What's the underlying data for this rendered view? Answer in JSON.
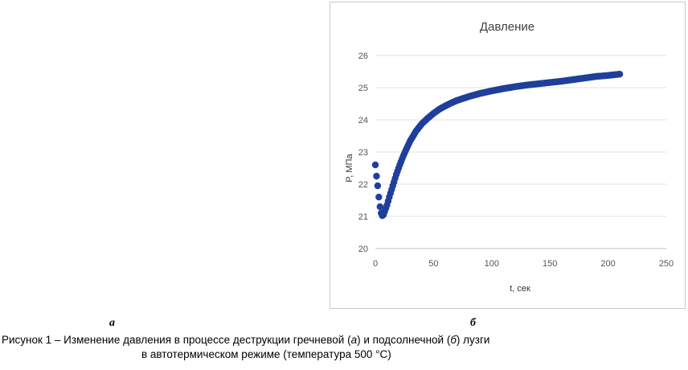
{
  "panels": {
    "a": "а",
    "b": "б"
  },
  "caption": {
    "line1_p1": "Рисунок 1 – Изменение давления в процессе деструкции гречневой (",
    "a": "а",
    "line1_p2": ") и подсолнечной (",
    "b": "б",
    "line1_p3": ") лузги",
    "line2": "в автотермическом режиме (температура 500 °С)"
  },
  "chart_data": {
    "type": "scatter",
    "title": "Давление",
    "xlabel": "t, сек",
    "ylabel": "P, МПа",
    "xlim": [
      0,
      250
    ],
    "ylim": [
      20,
      26
    ],
    "x_ticks": [
      "0",
      "50",
      "100",
      "150",
      "200",
      "250"
    ],
    "y_ticks": [
      "20",
      "21",
      "22",
      "23",
      "24",
      "25",
      "26"
    ],
    "grid": "horizontal",
    "marker_color": "#1f3f9a",
    "points": [
      [
        0,
        22.6
      ],
      [
        1,
        22.25
      ],
      [
        2,
        21.95
      ],
      [
        3,
        21.6
      ],
      [
        4,
        21.3
      ],
      [
        5,
        21.1
      ],
      [
        6,
        21.02
      ],
      [
        7,
        21.05
      ],
      [
        8,
        21.15
      ],
      [
        10,
        21.35
      ],
      [
        12,
        21.6
      ],
      [
        15,
        21.95
      ],
      [
        18,
        22.3
      ],
      [
        21,
        22.6
      ],
      [
        24,
        22.88
      ],
      [
        27,
        23.12
      ],
      [
        30,
        23.35
      ],
      [
        35,
        23.65
      ],
      [
        40,
        23.88
      ],
      [
        45,
        24.05
      ],
      [
        50,
        24.2
      ],
      [
        55,
        24.33
      ],
      [
        60,
        24.43
      ],
      [
        65,
        24.52
      ],
      [
        70,
        24.6
      ],
      [
        75,
        24.66
      ],
      [
        80,
        24.72
      ],
      [
        90,
        24.82
      ],
      [
        100,
        24.9
      ],
      [
        110,
        24.97
      ],
      [
        120,
        25.03
      ],
      [
        130,
        25.08
      ],
      [
        140,
        25.12
      ],
      [
        150,
        25.16
      ],
      [
        160,
        25.2
      ],
      [
        170,
        25.25
      ],
      [
        180,
        25.3
      ],
      [
        190,
        25.35
      ],
      [
        200,
        25.38
      ],
      [
        205,
        25.4
      ],
      [
        210,
        25.42
      ]
    ]
  }
}
